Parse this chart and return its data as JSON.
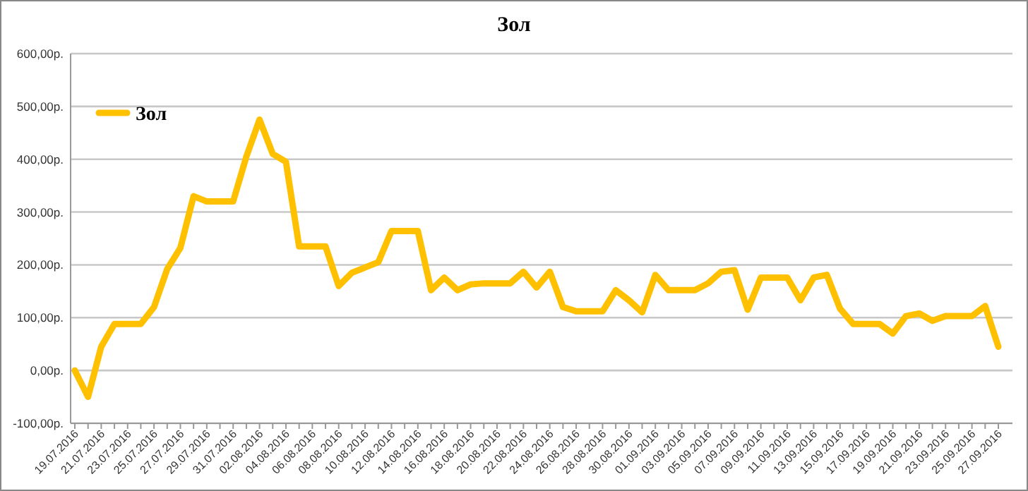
{
  "chart_data": {
    "type": "line",
    "title": "Зол",
    "categories": [
      "19.07.2016",
      null,
      "21.07.2016",
      null,
      "23.07.2016",
      null,
      "25.07.2016",
      null,
      "27.07.2016",
      null,
      "29.07.2016",
      null,
      "31.07.2016",
      null,
      "02.08.2016",
      null,
      "04.08.2016",
      null,
      "06.08.2016",
      null,
      "08.08.2016",
      null,
      "10.08.2016",
      null,
      "12.08.2016",
      null,
      "14.08.2016",
      null,
      "16.08.2016",
      null,
      "18.08.2016",
      null,
      "20.08.2016",
      null,
      "22.08.2016",
      null,
      "24.08.2016",
      null,
      "26.08.2016",
      null,
      "28.08.2016",
      null,
      "30.08.2016",
      null,
      "01.09.2016",
      null,
      "03.09.2016",
      null,
      "05.09.2016",
      null,
      "07.09.2016",
      null,
      "09.09.2016",
      null,
      "11.09.2016",
      null,
      "13.09.2016",
      null,
      "15.09.2016",
      null,
      "17.09.2016",
      null,
      "19.09.2016",
      null,
      "21.09.2016",
      null,
      "23.09.2016",
      null,
      "25.09.2016",
      null,
      "27.09.2016"
    ],
    "series": [
      {
        "name": "Зол",
        "color": "#ffc000",
        "values": [
          0,
          -50,
          45,
          88,
          88,
          88,
          120,
          192,
          232,
          330,
          320,
          320,
          320,
          405,
          475,
          410,
          395,
          235,
          235,
          235,
          160,
          185,
          195,
          205,
          264,
          264,
          264,
          152,
          176,
          152,
          163,
          165,
          165,
          165,
          187,
          157,
          187,
          120,
          112,
          112,
          112,
          152,
          133,
          110,
          181,
          152,
          152,
          152,
          165,
          187,
          190,
          115,
          176,
          176,
          176,
          133,
          176,
          181,
          117,
          88,
          88,
          88,
          70,
          103,
          108,
          94,
          103,
          103,
          103,
          122,
          45
        ]
      }
    ],
    "ylim": [
      -100,
      600
    ],
    "yticks": [
      {
        "value": -100,
        "label": "-100,00р."
      },
      {
        "value": 0,
        "label": "0,00р."
      },
      {
        "value": 100,
        "label": "100,00р."
      },
      {
        "value": 200,
        "label": "200,00р."
      },
      {
        "value": 300,
        "label": "300,00р."
      },
      {
        "value": 400,
        "label": "400,00р."
      },
      {
        "value": 500,
        "label": "500,00р."
      },
      {
        "value": 600,
        "label": "600,00р."
      }
    ],
    "grid": "y",
    "legend": "top left",
    "marker": "none",
    "line_style": "solid"
  }
}
